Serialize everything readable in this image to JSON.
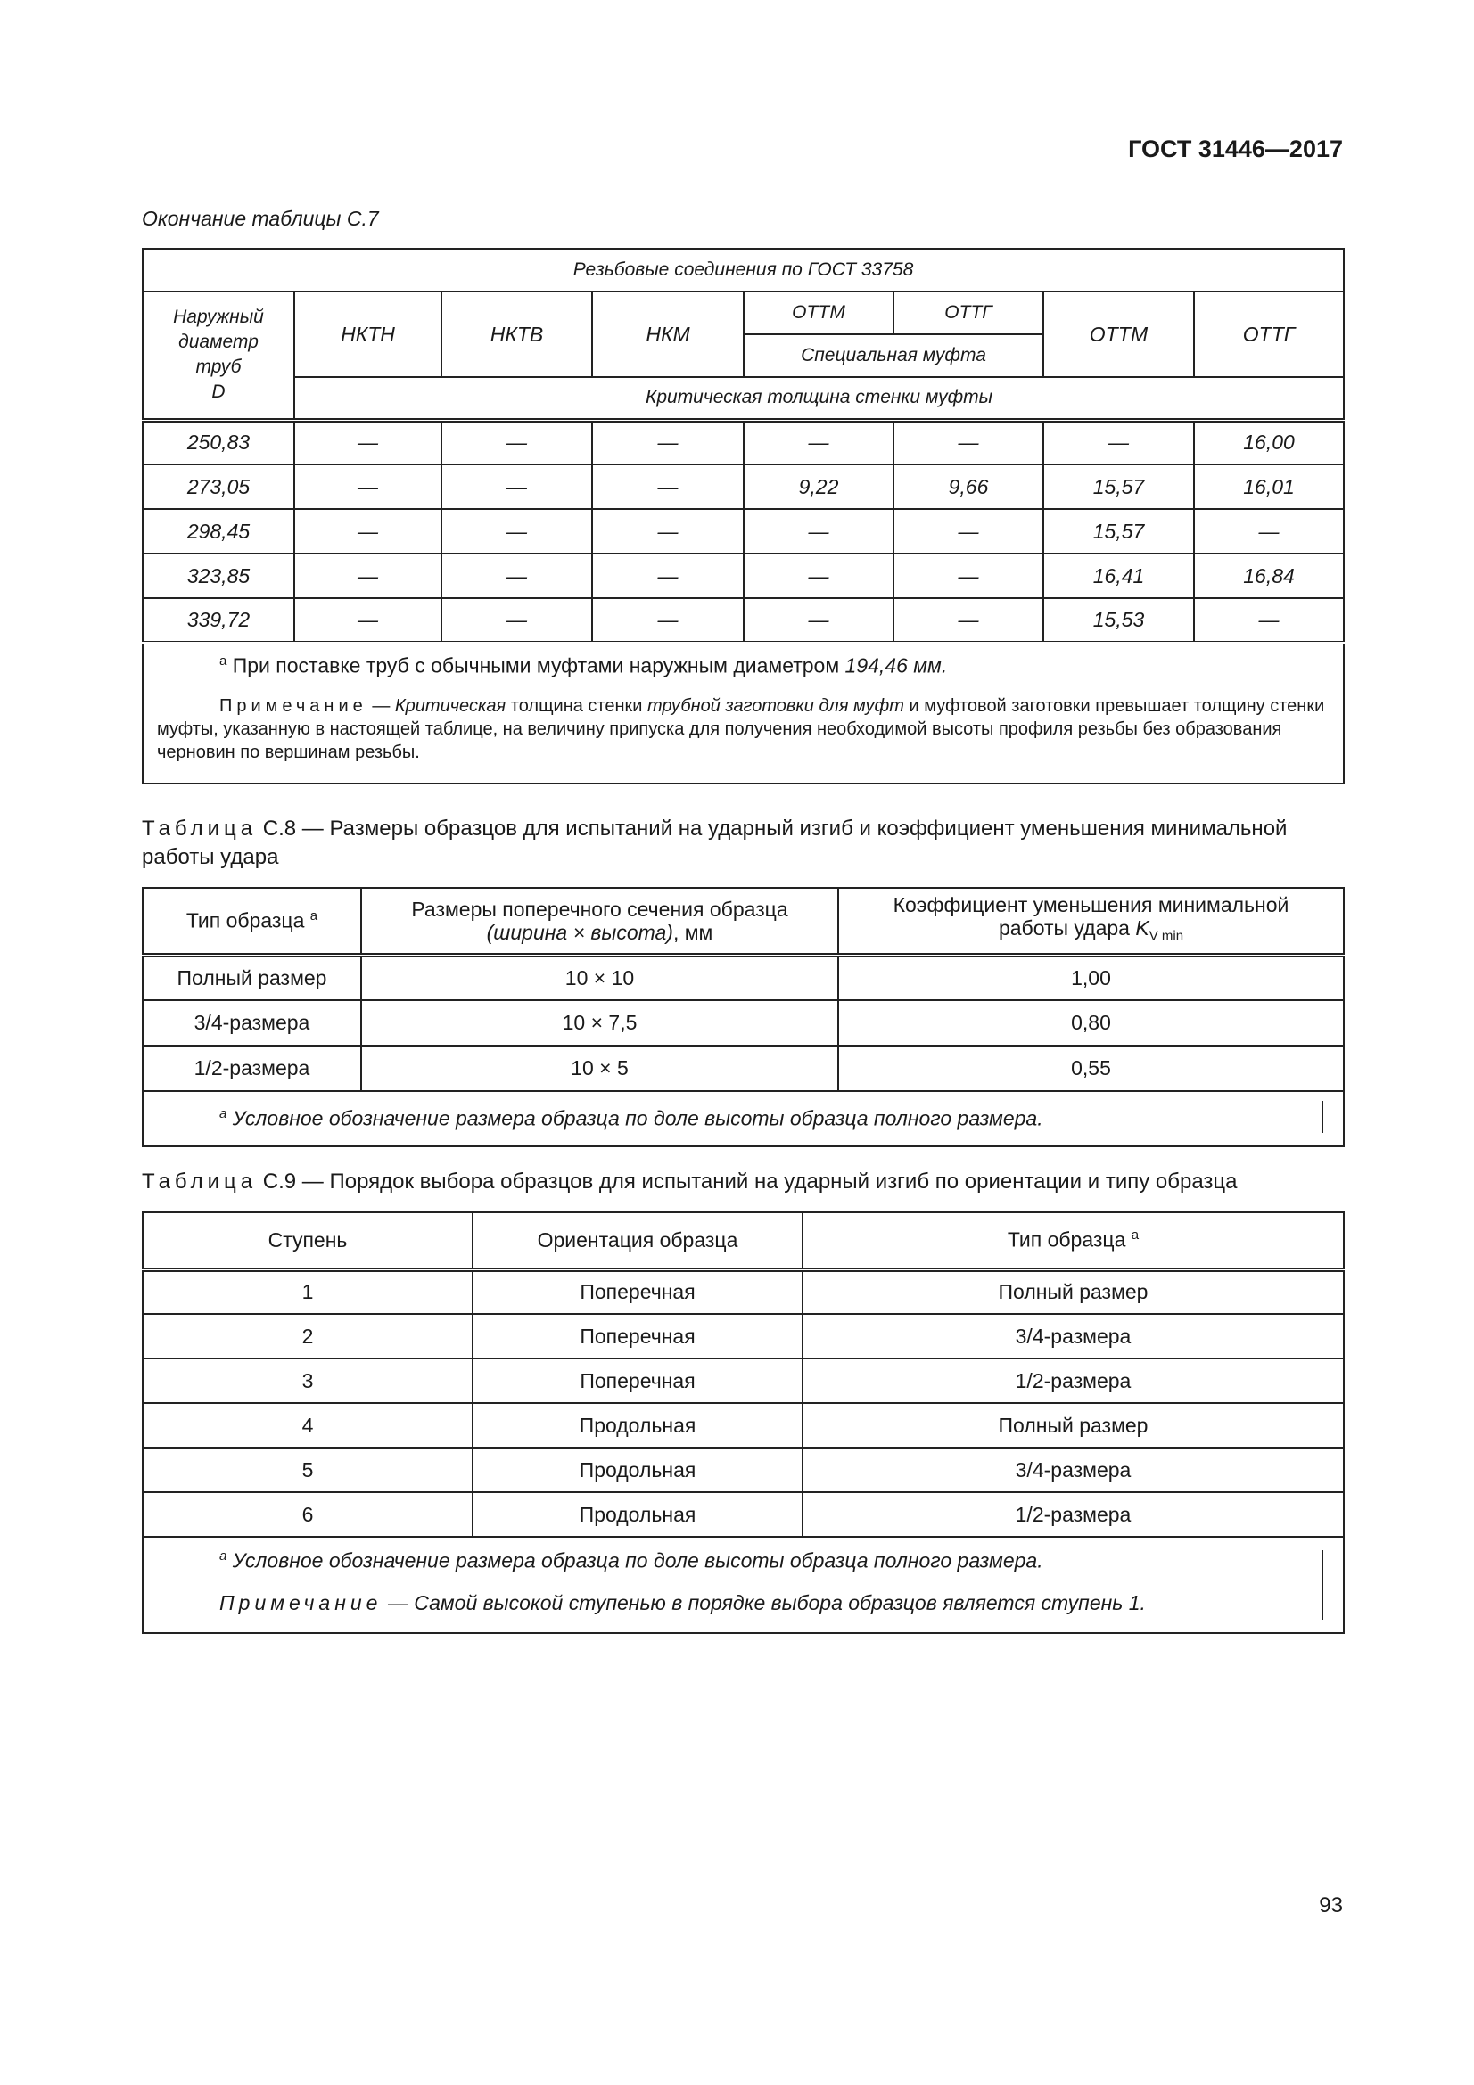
{
  "header": {
    "doc_id": "ГОСТ 31446—2017"
  },
  "table_c7": {
    "continuation": "Окончание таблицы С.7",
    "group_title": "Резьбовые соединения по ГОСТ 33758",
    "diameter_header": [
      "Наружный",
      "диаметр",
      "труб",
      "D"
    ],
    "columns": [
      "НКТН",
      "НКТВ",
      "НКМ",
      "ОТТМ",
      "ОТТГ",
      "ОТТМ",
      "ОТТГ"
    ],
    "special_coupling": "Специальная муфта",
    "subtitle": "Критическая толщина стенки муфты",
    "rows": [
      [
        "250,83",
        "—",
        "—",
        "—",
        "—",
        "—",
        "—",
        "16,00"
      ],
      [
        "273,05",
        "—",
        "—",
        "—",
        "9,22",
        "9,66",
        "15,57",
        "16,01"
      ],
      [
        "298,45",
        "—",
        "—",
        "—",
        "—",
        "—",
        "15,57",
        "—"
      ],
      [
        "323,85",
        "—",
        "—",
        "—",
        "—",
        "—",
        "16,41",
        "16,84"
      ],
      [
        "339,72",
        "—",
        "—",
        "—",
        "—",
        "—",
        "15,53",
        "—"
      ]
    ],
    "footnote_mark": "a",
    "footnote_text": "При поставке труб с обычными муфтами наружным диаметром",
    "footnote_value": "194,46 мм.",
    "note_label": "Примечание",
    "note_parts": [
      "Критическая",
      "толщина стенки",
      "трубной заготовки для муфт",
      "и муфтовой заготовки превышает толщину стенки муфты, указанную в настоящей таблице, на величину припуска для получения необходимой высоты профиля резьбы без образования черновин по вершинам резьбы."
    ]
  },
  "table_c8": {
    "caption_label": "Таблица",
    "caption": "С.8 — Размеры образцов для испытаний на ударный изгиб и коэффициент уменьшения минимальной работы удара",
    "headers": {
      "type": "Тип образца",
      "type_mark": "a",
      "size_line1": "Размеры поперечного сечения образца",
      "size_line2_italic": "(ширина × высота)",
      "size_line2_unit": ", мм",
      "coef_line1": "Коэффициент уменьшения минимальной",
      "coef_line2": "работы удара",
      "coef_symbol": "K",
      "coef_sub": "V min"
    },
    "rows": [
      [
        "Полный размер",
        "10 × 10",
        "1,00"
      ],
      [
        "3/4-размера",
        "10 × 7,5",
        "0,80"
      ],
      [
        "1/2-размера",
        "10 × 5",
        "0,55"
      ]
    ],
    "footnote_mark": "a",
    "footnote": "Условное обозначение размера образца по доле высоты образца полного размера."
  },
  "table_c9": {
    "caption_label": "Таблица",
    "caption": "С.9 — Порядок выбора образцов для испытаний на ударный изгиб по ориентации и типу образца",
    "headers": [
      "Ступень",
      "Ориентация образца",
      "Тип образца"
    ],
    "header_mark": "a",
    "rows": [
      [
        "1",
        "Поперечная",
        "Полный размер"
      ],
      [
        "2",
        "Поперечная",
        "3/4-размера"
      ],
      [
        "3",
        "Поперечная",
        "1/2-размера"
      ],
      [
        "4",
        "Продольная",
        "Полный размер"
      ],
      [
        "5",
        "Продольная",
        "3/4-размера"
      ],
      [
        "6",
        "Продольная",
        "1/2-размера"
      ]
    ],
    "footnote_mark": "a",
    "footnote": "Условное обозначение размера образца по доле высоты образца полного размера.",
    "note_label": "Примечание",
    "note": "— Самой высокой ступенью в порядке выбора образцов является ступень 1."
  },
  "page_number": "93"
}
